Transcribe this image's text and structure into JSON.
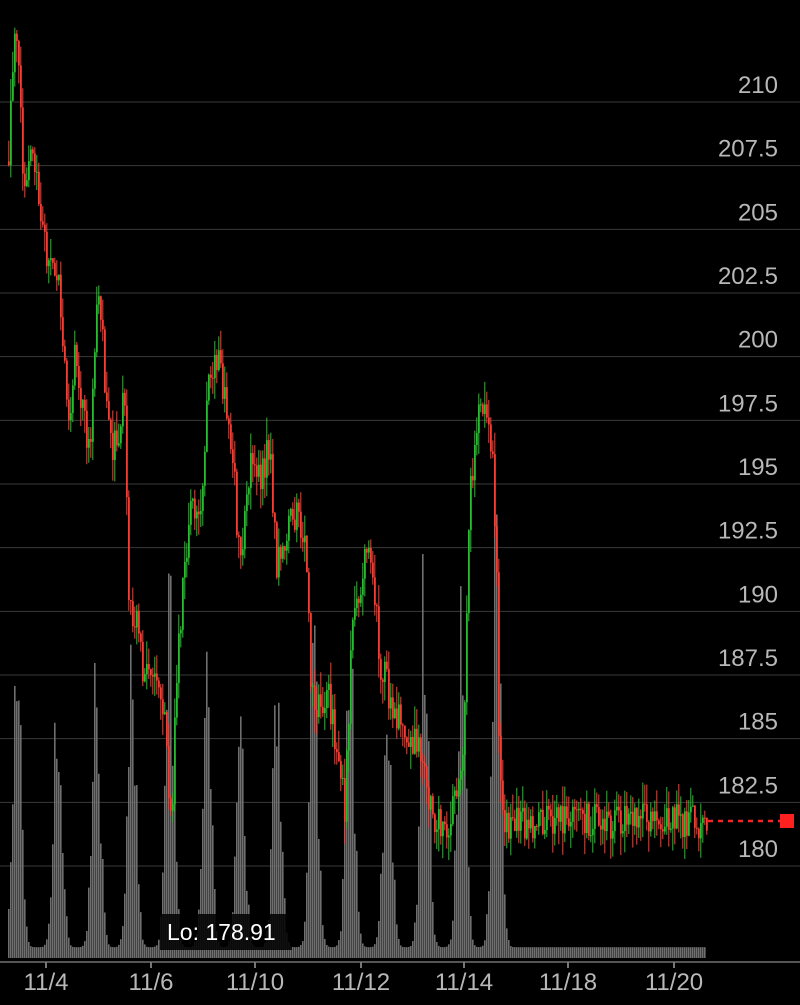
{
  "chart_data": {
    "type": "candlestick",
    "title": "",
    "xlabel": "",
    "ylabel": "",
    "ylim": [
      176.5,
      212.6
    ],
    "y_ticks": [
      210,
      207.5,
      205,
      202.5,
      200,
      197.5,
      195,
      192.5,
      190,
      187.5,
      185,
      182.5,
      180
    ],
    "y_tick_labels": [
      "210",
      "207.5",
      "205",
      "202.5",
      "200",
      "197.5",
      "195",
      "192.5",
      "190",
      "187.5",
      "185",
      "182.5",
      "180"
    ],
    "x_tick_labels": [
      "11/4",
      "11/6",
      "11/10",
      "11/12",
      "11/14",
      "11/18",
      "11/20"
    ],
    "grid": true,
    "low_label": "Lo: 178.91",
    "low_value": 178.91,
    "last_price": 181.1,
    "colors": {
      "up": "#22c02a",
      "down": "#ff3b30",
      "volume": "#6f6f6f",
      "grid": "#3a3a3a",
      "last_marker": "#ff2020"
    },
    "path": [
      [
        0,
        207.0
      ],
      [
        0.003,
        210.2
      ],
      [
        0.012,
        212.0
      ],
      [
        0.02,
        206.5
      ],
      [
        0.035,
        207.3
      ],
      [
        0.045,
        204.6
      ],
      [
        0.06,
        202.9
      ],
      [
        0.07,
        202.5
      ],
      [
        0.085,
        196.5
      ],
      [
        0.095,
        199.3
      ],
      [
        0.11,
        196.3
      ],
      [
        0.118,
        196.3
      ],
      [
        0.128,
        202.6
      ],
      [
        0.138,
        198.0
      ],
      [
        0.145,
        195.6
      ],
      [
        0.157,
        196.6
      ],
      [
        0.165,
        197.9
      ],
      [
        0.172,
        189.2
      ],
      [
        0.182,
        188.9
      ],
      [
        0.192,
        187.1
      ],
      [
        0.2,
        187.4
      ],
      [
        0.21,
        186.7
      ],
      [
        0.218,
        185.5
      ],
      [
        0.225,
        184.8
      ],
      [
        0.232,
        180.5
      ],
      [
        0.24,
        187.2
      ],
      [
        0.248,
        189.8
      ],
      [
        0.26,
        193.2
      ],
      [
        0.275,
        194.0
      ],
      [
        0.285,
        198.0
      ],
      [
        0.3,
        199.3
      ],
      [
        0.31,
        197.3
      ],
      [
        0.32,
        195.6
      ],
      [
        0.33,
        191.0
      ],
      [
        0.345,
        195.0
      ],
      [
        0.36,
        194.6
      ],
      [
        0.372,
        196.0
      ],
      [
        0.382,
        191.3
      ],
      [
        0.395,
        192.2
      ],
      [
        0.41,
        193.1
      ],
      [
        0.425,
        191.9
      ],
      [
        0.432,
        186.4
      ],
      [
        0.44,
        185.4
      ],
      [
        0.455,
        186.2
      ],
      [
        0.47,
        183.9
      ],
      [
        0.48,
        181.4
      ],
      [
        0.49,
        188.6
      ],
      [
        0.5,
        189.8
      ],
      [
        0.51,
        191.6
      ],
      [
        0.52,
        190.7
      ],
      [
        0.53,
        187.5
      ],
      [
        0.54,
        186.4
      ],
      [
        0.548,
        185.4
      ],
      [
        0.56,
        185.1
      ],
      [
        0.572,
        183.9
      ],
      [
        0.585,
        184.1
      ],
      [
        0.595,
        183.3
      ],
      [
        0.605,
        181.1
      ],
      [
        0.62,
        180.8
      ],
      [
        0.63,
        181.3
      ],
      [
        0.64,
        182.6
      ],
      [
        0.65,
        184.6
      ],
      [
        0.658,
        193.5
      ],
      [
        0.668,
        196.8
      ],
      [
        0.68,
        197.0
      ],
      [
        0.69,
        195.8
      ],
      [
        0.698,
        190.3
      ],
      [
        0.7,
        184.5
      ],
      [
        0.705,
        181.8
      ],
      [
        0.71,
        181.1
      ]
    ],
    "volume": {
      "spikes": [
        {
          "x": 0.012,
          "v": 0.62
        },
        {
          "x": 0.07,
          "v": 0.58
        },
        {
          "x": 0.125,
          "v": 0.57
        },
        {
          "x": 0.176,
          "v": 0.64
        },
        {
          "x": 0.23,
          "v": 0.74
        },
        {
          "x": 0.283,
          "v": 0.66
        },
        {
          "x": 0.331,
          "v": 0.57
        },
        {
          "x": 0.383,
          "v": 0.57
        },
        {
          "x": 0.436,
          "v": 0.66
        },
        {
          "x": 0.488,
          "v": 0.66
        },
        {
          "x": 0.541,
          "v": 0.58
        },
        {
          "x": 0.594,
          "v": 0.8
        },
        {
          "x": 0.647,
          "v": 0.7
        },
        {
          "x": 0.697,
          "v": 1.0
        }
      ],
      "baseline": 0.02
    }
  }
}
